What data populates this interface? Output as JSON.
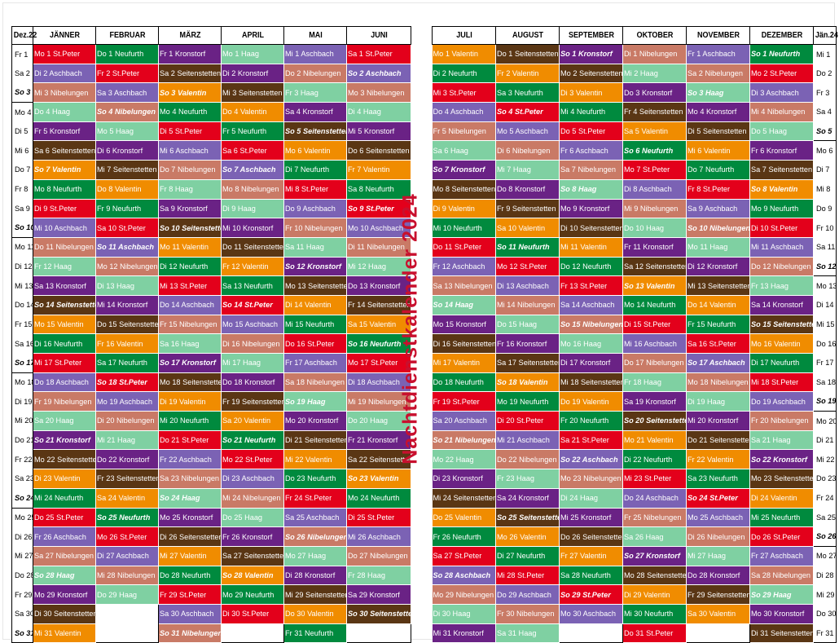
{
  "title": "Nachtdienstkalender 2024",
  "colors": {
    "Neufurth": "#008a3e",
    "St.Peter": "#e3001b",
    "Aschbach": "#7b62b4",
    "Nibelungen": "#c97a66",
    "Seitenstetten": "#5a3614",
    "Haag": "#7fd0a2",
    "Kronstorf": "#6a2285",
    "Valentin": "#f08c00"
  },
  "left": {
    "side_header": "Dez.22",
    "months": [
      "JÄNNER",
      "FEBRUAR",
      "MÄRZ",
      "APRIL",
      "MAI",
      "JUNI"
    ],
    "side": [
      "Fr 1",
      "Sa 2",
      "So 3",
      "Mo 4",
      "Di 5",
      "Mi 6",
      "Do 7",
      "Fr 8",
      "Sa 9",
      "So 10",
      "Mo 11",
      "Di 12",
      "Mi 13",
      "Do 14",
      "Fr 15",
      "Sa 16",
      "So 17",
      "Mo 18",
      "Di 19",
      "Mi 20",
      "Do 21",
      "Fr 22",
      "Sa 23",
      "So 24",
      "Mo 25",
      "Di 26",
      "Mi 27",
      "Do 28",
      "Fr 29",
      "Sa 30",
      "So 31"
    ],
    "cols": [
      [
        "Mo 1|St.Peter",
        "Di 2|Aschbach",
        "Mi 3|Nibelungen",
        "Do 4|Haag",
        "Fr 5|Kronstorf",
        "Sa 6|Seitenstetten",
        "So 7|Valentin",
        "Mo 8|Neufurth",
        "Di 9|St.Peter",
        "Mi 10|Aschbach",
        "Do 11|Nibelungen",
        "Fr 12|Haag",
        "Sa 13|Kronstorf",
        "So 14|Seitenstetten",
        "Mo 15|Valentin",
        "Di 16|Neufurth",
        "Mi 17|St.Peter",
        "Do 18|Aschbach",
        "Fr 19|Nibelungen",
        "Sa 20|Haag",
        "So 21|Kronstorf",
        "Mo 22|Seitenstetten",
        "Di 23|Valentin",
        "Mi 24|Neufurth",
        "Do 25|St.Peter",
        "Fr 26|Aschbach",
        "Sa 27|Nibelungen",
        "So 28|Haag",
        "Mo 29|Kronstorf",
        "Di 30|Seitenstetten",
        "Mi 31|Valentin"
      ],
      [
        "Do 1|Neufurth",
        "Fr 2|St.Peter",
        "Sa 3|Aschbach",
        "So 4|Nibelungen",
        "Mo 5|Haag",
        "Di 6|Kronstorf",
        "Mi 7|Seitenstetten",
        "Do 8|Valentin",
        "Fr 9|Neufurth",
        "Sa 10|St.Peter",
        "So 11|Aschbach",
        "Mo 12|Nibelungen",
        "Di 13|Haag",
        "Mi 14|Kronstorf",
        "Do 15|Seitenstetten",
        "Fr 16|Valentin",
        "Sa 17|Neufurth",
        "So 18|St.Peter",
        "Mo 19|Aschbach",
        "Di 20|Nibelungen",
        "Mi 21|Haag",
        "Do 22|Kronstorf",
        "Fr 23|Seitenstetten",
        "Sa 24|Valentin",
        "So 25|Neufurth",
        "Mo 26|St.Peter",
        "Di 27|Aschbach",
        "Mi 28|Nibelungen",
        "Do 29|Haag",
        "",
        ""
      ],
      [
        "Fr 1|Kronstorf",
        "Sa 2|Seitenstetten",
        "So 3|Valentin",
        "Mo 4|Neufurth",
        "Di 5|St.Peter",
        "Mi 6|Aschbach",
        "Do 7|Nibelungen",
        "Fr 8|Haag",
        "Sa 9|Kronstorf",
        "So 10|Seitenstetten",
        "Mo 11|Valentin",
        "Di 12|Neufurth",
        "Mi 13|St.Peter",
        "Do 14|Aschbach",
        "Fr 15|Nibelungen",
        "Sa 16|Haag",
        "So 17|Kronstorf",
        "Mo 18|Seitenstetten",
        "Di 19|Valentin",
        "Mi 20|Neufurth",
        "Do 21|St.Peter",
        "Fr 22|Aschbach",
        "Sa 23|Nibelungen",
        "So 24|Haag",
        "Mo 25|Kronstorf",
        "Di 26|Seitenstetten",
        "Mi 27|Valentin",
        "Do 28|Neufurth",
        "Fr 29|St.Peter",
        "Sa 30|Aschbach",
        "So 31|Nibelungen"
      ],
      [
        "Mo 1|Haag",
        "Di 2|Kronstorf",
        "Mi 3|Seitenstetten",
        "Do 4|Valentin",
        "Fr 5|Neufurth",
        "Sa 6|St.Peter",
        "So 7|Aschbach",
        "Mo 8|Nibelungen",
        "Di 9|Haag",
        "Mi 10|Kronstorf",
        "Do 11|Seitenstetten",
        "Fr 12|Valentin",
        "Sa 13|Neufurth",
        "So 14|St.Peter",
        "Mo 15|Aschbach",
        "Di 16|Nibelungen",
        "Mi 17|Haag",
        "Do 18|Kronstorf",
        "Fr 19|Seitenstetten",
        "Sa 20|Valentin",
        "So 21|Neufurth",
        "Mo 22|St.Peter",
        "Di 23|Aschbach",
        "Mi 24|Nibelungen",
        "Do 25|Haag",
        "Fr 26|Kronstorf",
        "Sa 27|Seitenstetten",
        "So 28|Valentin",
        "Mo 29|Neufurth",
        "Di 30|St.Peter",
        ""
      ],
      [
        "Mi 1|Aschbach",
        "Do 2|Nibelungen",
        "Fr 3|Haag",
        "Sa 4|Kronstorf",
        "So 5|Seitenstetten",
        "Mo 6|Valentin",
        "Di 7|Neufurth",
        "Mi 8|St.Peter",
        "Do 9|Aschbach",
        "Fr 10|Nibelungen",
        "Sa 11|Haag",
        "So 12|Kronstorf",
        "Mo 13|Seitenstetten",
        "Di 14|Valentin",
        "Mi 15|Neufurth",
        "Do 16|St.Peter",
        "Fr 17|Aschbach",
        "Sa 18|Nibelungen",
        "So 19|Haag",
        "Mo 20|Kronstorf",
        "Di 21|Seitenstetten",
        "Mi 22|Valentin",
        "Do 23|Neufurth",
        "Fr 24|St.Peter",
        "Sa 25|Aschbach",
        "So 26|Nibelungen",
        "Mo 27|Haag",
        "Di 28|Kronstorf",
        "Mi 29|Seitenstetten",
        "Do 30|Valentin",
        "Fr 31|Neufurth"
      ],
      [
        "Sa 1|St.Peter",
        "So 2|Aschbach",
        "Mo 3|Nibelungen",
        "Di 4|Haag",
        "Mi 5|Kronstorf",
        "Do 6|Seitenstetten",
        "Fr 7|Valentin",
        "Sa 8|Neufurth",
        "So 9|St.Peter",
        "Mo 10|Aschbach",
        "Di 11|Nibelungen",
        "Mi 12|Haag",
        "Do 13|Kronstorf",
        "Fr 14|Seitenstetten",
        "Sa 15|Valentin",
        "So 16|Neufurth",
        "Mo 17|St.Peter",
        "Di 18|Aschbach",
        "Mi 19|Nibelungen",
        "Do 20|Haag",
        "Fr 21|Kronstorf",
        "Sa 22|Seitenstetten",
        "So 23|Valentin",
        "Mo 24|Neufurth",
        "Di 25|St.Peter",
        "Mi 26|Aschbach",
        "Do 27|Nibelungen",
        "Fr 28|Haag",
        "Sa 29|Kronstorf",
        "So 30|Seitenstetten",
        ""
      ]
    ]
  },
  "right": {
    "side_header": "Jän.24",
    "months": [
      "JULI",
      "AUGUST",
      "SEPTEMBER",
      "OKTOBER",
      "NOVEMBER",
      "DEZEMBER"
    ],
    "side": [
      "Mi 1",
      "Do 2",
      "Fr 3",
      "Sa 4",
      "So 5",
      "Mo 6",
      "Di 7",
      "Mi 8",
      "Do 9",
      "Fr 10",
      "Sa 11",
      "So 12",
      "Mo 13",
      "Di 14",
      "Mi 15",
      "Do 16",
      "Fr 17",
      "Sa 18",
      "So 19",
      "Mo 20",
      "Di 21",
      "Mi 22",
      "Do 23",
      "Fr 24",
      "Sa 25",
      "So 26",
      "Mo 27",
      "Di 28",
      "Mi 29",
      "Do 30",
      "Fr 31"
    ],
    "cols": [
      [
        "Mo 1|Valentin",
        "Di 2|Neufurth",
        "Mi 3|St.Peter",
        "Do 4|Aschbach",
        "Fr 5|Nibelungen",
        "Sa 6|Haag",
        "So 7|Kronstorf",
        "Mo 8|Seitenstetten",
        "Di 9|Valentin",
        "Mi 10|Neufurth",
        "Do 11|St.Peter",
        "Fr 12|Aschbach",
        "Sa 13|Nibelungen",
        "So 14|Haag",
        "Mo 15|Kronstorf",
        "Di 16|Seitenstetten",
        "Mi 17|Valentin",
        "Do 18|Neufurth",
        "Fr 19|St.Peter",
        "Sa 20|Aschbach",
        "So 21|Nibelungen",
        "Mo 22|Haag",
        "Di 23|Kronstorf",
        "Mi 24|Seitenstetten",
        "Do 25|Valentin",
        "Fr 26|Neufurth",
        "Sa 27|St.Peter",
        "So 28|Aschbach",
        "Mo 29|Nibelungen",
        "Di 30|Haag",
        "Mi 31|Kronstorf"
      ],
      [
        "Do 1|Seitenstetten",
        "Fr 2|Valentin",
        "Sa 3|Neufurth",
        "So 4|St.Peter",
        "Mo 5|Aschbach",
        "Di 6|Nibelungen",
        "Mi 7|Haag",
        "Do 8|Kronstorf",
        "Fr 9|Seitenstetten",
        "Sa 10|Valentin",
        "So 11|Neufurth",
        "Mo 12|St.Peter",
        "Di 13|Aschbach",
        "Mi 14|Nibelungen",
        "Do 15|Haag",
        "Fr 16|Kronstorf",
        "Sa 17|Seitenstetten",
        "So 18|Valentin",
        "Mo 19|Neufurth",
        "Di 20|St.Peter",
        "Mi 21|Aschbach",
        "Do 22|Nibelungen",
        "Fr 23|Haag",
        "Sa 24|Kronstorf",
        "So 25|Seitenstetten",
        "Mo 26|Valentin",
        "Di 27|Neufurth",
        "Mi 28|St.Peter",
        "Do 29|Aschbach",
        "Fr 30|Nibelungen",
        "Sa 31|Haag"
      ],
      [
        "So 1|Kronstorf",
        "Mo 2|Seitenstetten",
        "Di 3|Valentin",
        "Mi 4|Neufurth",
        "Do 5|St.Peter",
        "Fr 6|Aschbach",
        "Sa 7|Nibelungen",
        "So 8|Haag",
        "Mo 9|Kronstorf",
        "Di 10|Seitenstetten",
        "Mi 11|Valentin",
        "Do 12|Neufurth",
        "Fr 13|St.Peter",
        "Sa 14|Aschbach",
        "So 15|Nibelungen",
        "Mo 16|Haag",
        "Di 17|Kronstorf",
        "Mi 18|Seitenstetten",
        "Do 19|Valentin",
        "Fr 20|Neufurth",
        "Sa 21|St.Peter",
        "So 22|Aschbach",
        "Mo 23|Nibelungen",
        "Di 24|Haag",
        "Mi 25|Kronstorf",
        "Do 26|Seitenstetten",
        "Fr 27|Valentin",
        "Sa 28|Neufurth",
        "So 29|St.Peter",
        "Mo 30|Aschbach",
        ""
      ],
      [
        "Di 1|Nibelungen",
        "Mi 2|Haag",
        "Do 3|Kronstorf",
        "Fr 4|Seitenstetten",
        "Sa 5|Valentin",
        "So 6|Neufurth",
        "Mo 7|St.Peter",
        "Di 8|Aschbach",
        "Mi 9|Nibelungen",
        "Do 10|Haag",
        "Fr 11|Kronstorf",
        "Sa 12|Seitenstetten",
        "So 13|Valentin",
        "Mo 14|Neufurth",
        "Di 15|St.Peter",
        "Mi 16|Aschbach",
        "Do 17|Nibelungen",
        "Fr 18|Haag",
        "Sa 19|Kronstorf",
        "So 20|Seitenstetten",
        "Mo 21|Valentin",
        "Di 22|Neufurth",
        "Mi 23|St.Peter",
        "Do 24|Aschbach",
        "Fr 25|Nibelungen",
        "Sa 26|Haag",
        "So 27|Kronstorf",
        "Mo 28|Seitenstetten",
        "Di 29|Valentin",
        "Mi 30|Neufurth",
        "Do 31|St.Peter"
      ],
      [
        "Fr 1|Aschbach",
        "Sa 2|Nibelungen",
        "So 3|Haag",
        "Mo 4|Kronstorf",
        "Di 5|Seitenstetten",
        "Mi 6|Valentin",
        "Do 7|Neufurth",
        "Fr 8|St.Peter",
        "Sa 9|Aschbach",
        "So 10|Nibelungen",
        "Mo 11|Haag",
        "Di 12|Kronstorf",
        "Mi 13|Seitenstetten",
        "Do 14|Valentin",
        "Fr 15|Neufurth",
        "Sa 16|St.Peter",
        "So 17|Aschbach",
        "Mo 18|Nibelungen",
        "Di 19|Haag",
        "Mi 20|Kronstorf",
        "Do 21|Seitenstetten",
        "Fr 22|Valentin",
        "Sa 23|Neufurth",
        "So 24|St.Peter",
        "Mo 25|Aschbach",
        "Di 26|Nibelungen",
        "Mi 27|Haag",
        "Do 28|Kronstorf",
        "Fr 29|Seitenstetten",
        "Sa 30|Valentin",
        ""
      ],
      [
        "So 1|Neufurth",
        "Mo 2|St.Peter",
        "Di 3|Aschbach",
        "Mi 4|Nibelungen",
        "Do 5|Haag",
        "Fr 6|Kronstorf",
        "Sa 7|Seitenstetten",
        "So 8|Valentin",
        "Mo 9|Neufurth",
        "Di 10|St.Peter",
        "Mi 11|Aschbach",
        "Do 12|Nibelungen",
        "Fr 13|Haag",
        "Sa 14|Kronstorf",
        "So 15|Seitenstetten",
        "Mo 16|Valentin",
        "Di 17|Neufurth",
        "Mi 18|St.Peter",
        "Do 19|Aschbach",
        "Fr 20|Nibelungen",
        "Sa 21|Haag",
        "So 22|Kronstorf",
        "Mo 23|Seitenstetten",
        "Di 24|Valentin",
        "Mi 25|Neufurth",
        "Do 26|St.Peter",
        "Fr 27|Aschbach",
        "Sa 28|Nibelungen",
        "So 29|Haag",
        "Mo 30|Kronstorf",
        "Di 31|Seitenstetten"
      ]
    ]
  }
}
